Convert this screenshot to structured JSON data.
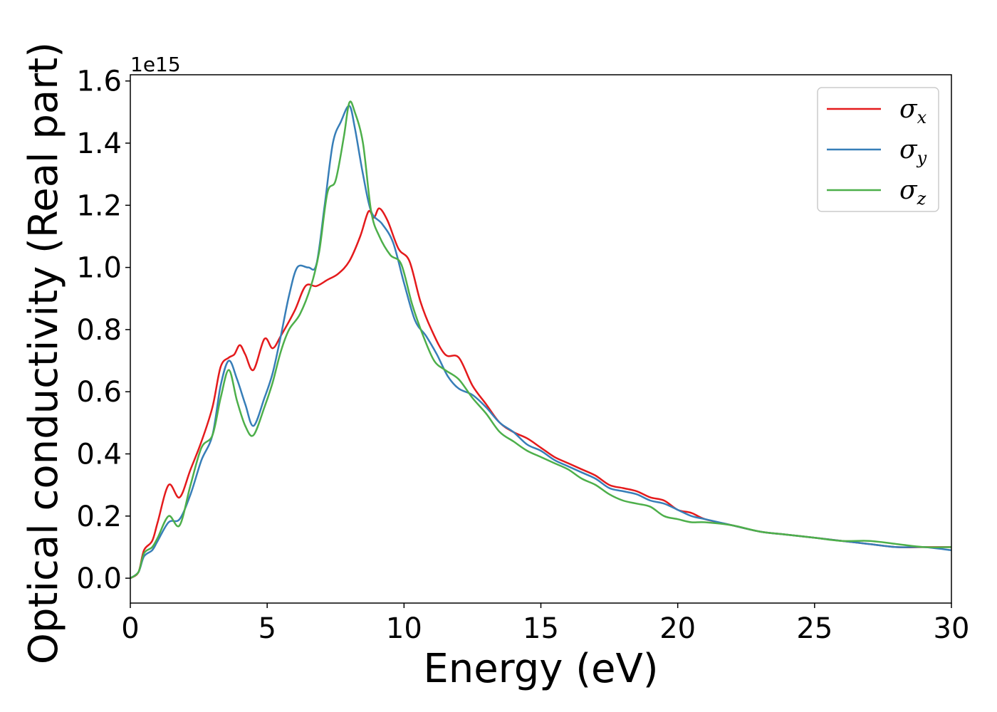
{
  "chart_data": {
    "type": "line",
    "xlabel": "Energy (eV)",
    "ylabel": "Optical conductivity (Real part)",
    "y_offset_label": "1e15",
    "xlim": [
      0,
      30
    ],
    "ylim": [
      -0.08,
      1.62
    ],
    "xticks": [
      0,
      5,
      10,
      15,
      20,
      25,
      30
    ],
    "xtick_labels": [
      "0",
      "5",
      "10",
      "15",
      "20",
      "25",
      "30"
    ],
    "yticks": [
      0.0,
      0.2,
      0.4,
      0.6,
      0.8,
      1.0,
      1.2,
      1.4,
      1.6
    ],
    "ytick_labels": [
      "0.0",
      "0.2",
      "0.4",
      "0.6",
      "0.8",
      "1.0",
      "1.2",
      "1.4",
      "1.6"
    ],
    "grid": false,
    "legend_position": "top-right",
    "series": [
      {
        "name": "σx",
        "symbol": "σ",
        "subscript": "x",
        "color": "#e41a1c",
        "x": [
          0,
          0.3,
          0.5,
          0.8,
          1.0,
          1.4,
          1.8,
          2.2,
          2.6,
          3.0,
          3.3,
          3.6,
          3.8,
          4.0,
          4.2,
          4.5,
          4.9,
          5.2,
          5.5,
          6.0,
          6.4,
          6.8,
          7.2,
          7.6,
          8.0,
          8.4,
          8.7,
          8.9,
          9.1,
          9.4,
          9.8,
          10.2,
          10.6,
          11.0,
          11.5,
          12.0,
          12.5,
          13.0,
          13.5,
          14.0,
          14.5,
          15.0,
          15.5,
          16.0,
          16.5,
          17.0,
          17.5,
          18.0,
          18.5,
          19.0,
          19.5,
          20.0,
          20.5,
          21.0,
          22.0,
          23.0,
          24.0,
          25.0,
          26.0,
          27.0,
          28.0,
          29.0,
          30.0
        ],
        "y": [
          0.0,
          0.02,
          0.09,
          0.12,
          0.18,
          0.3,
          0.26,
          0.35,
          0.44,
          0.55,
          0.68,
          0.71,
          0.72,
          0.75,
          0.72,
          0.67,
          0.77,
          0.74,
          0.78,
          0.86,
          0.94,
          0.94,
          0.96,
          0.98,
          1.02,
          1.1,
          1.18,
          1.16,
          1.19,
          1.15,
          1.06,
          1.02,
          0.89,
          0.8,
          0.72,
          0.71,
          0.62,
          0.56,
          0.5,
          0.47,
          0.45,
          0.42,
          0.39,
          0.37,
          0.35,
          0.33,
          0.3,
          0.29,
          0.28,
          0.26,
          0.25,
          0.22,
          0.21,
          0.19,
          0.17,
          0.15,
          0.14,
          0.13,
          0.12,
          0.11,
          0.1,
          0.1,
          0.1
        ]
      },
      {
        "name": "σy",
        "symbol": "σ",
        "subscript": "y",
        "color": "#377eb8",
        "x": [
          0,
          0.3,
          0.5,
          0.8,
          1.0,
          1.4,
          1.8,
          2.2,
          2.6,
          3.0,
          3.3,
          3.6,
          3.9,
          4.2,
          4.5,
          4.9,
          5.2,
          5.5,
          5.8,
          6.1,
          6.5,
          6.8,
          7.1,
          7.4,
          7.7,
          8.0,
          8.2,
          8.5,
          8.8,
          9.2,
          9.6,
          10.0,
          10.4,
          10.8,
          11.2,
          11.6,
          12.0,
          12.5,
          13.0,
          13.5,
          14.0,
          14.5,
          15.0,
          15.5,
          16.0,
          16.5,
          17.0,
          17.5,
          18.0,
          18.5,
          19.0,
          19.5,
          20.0,
          20.5,
          21.0,
          22.0,
          23.0,
          24.0,
          25.0,
          26.0,
          27.0,
          28.0,
          29.0,
          30.0
        ],
        "y": [
          0.0,
          0.02,
          0.07,
          0.09,
          0.12,
          0.18,
          0.19,
          0.27,
          0.38,
          0.46,
          0.62,
          0.7,
          0.64,
          0.56,
          0.49,
          0.58,
          0.66,
          0.78,
          0.91,
          1.0,
          1.0,
          1.01,
          1.2,
          1.4,
          1.47,
          1.52,
          1.45,
          1.3,
          1.18,
          1.14,
          1.08,
          0.95,
          0.83,
          0.78,
          0.72,
          0.65,
          0.61,
          0.59,
          0.55,
          0.5,
          0.47,
          0.43,
          0.41,
          0.38,
          0.36,
          0.34,
          0.32,
          0.29,
          0.28,
          0.27,
          0.25,
          0.24,
          0.22,
          0.2,
          0.19,
          0.17,
          0.15,
          0.14,
          0.13,
          0.12,
          0.11,
          0.1,
          0.1,
          0.09
        ]
      },
      {
        "name": "σz",
        "symbol": "σ",
        "subscript": "z",
        "color": "#4daf4a",
        "x": [
          0,
          0.3,
          0.5,
          0.8,
          1.0,
          1.4,
          1.8,
          2.2,
          2.6,
          3.0,
          3.3,
          3.6,
          3.9,
          4.2,
          4.5,
          4.9,
          5.2,
          5.5,
          5.8,
          6.2,
          6.6,
          6.9,
          7.2,
          7.5,
          7.8,
          8.0,
          8.2,
          8.5,
          8.8,
          9.1,
          9.5,
          9.9,
          10.3,
          10.7,
          11.1,
          11.5,
          12.0,
          12.5,
          13.0,
          13.5,
          14.0,
          14.5,
          15.0,
          15.5,
          16.0,
          16.5,
          17.0,
          17.5,
          18.0,
          18.5,
          19.0,
          19.5,
          20.0,
          20.5,
          21.0,
          22.0,
          23.0,
          24.0,
          25.0,
          26.0,
          27.0,
          28.0,
          29.0,
          30.0
        ],
        "y": [
          0.0,
          0.02,
          0.08,
          0.1,
          0.13,
          0.2,
          0.17,
          0.3,
          0.42,
          0.46,
          0.58,
          0.67,
          0.57,
          0.49,
          0.46,
          0.55,
          0.63,
          0.73,
          0.8,
          0.85,
          0.94,
          1.05,
          1.24,
          1.28,
          1.42,
          1.53,
          1.5,
          1.4,
          1.18,
          1.1,
          1.04,
          1.01,
          0.88,
          0.78,
          0.7,
          0.67,
          0.64,
          0.58,
          0.53,
          0.47,
          0.44,
          0.41,
          0.39,
          0.37,
          0.35,
          0.32,
          0.3,
          0.27,
          0.25,
          0.24,
          0.23,
          0.2,
          0.19,
          0.18,
          0.18,
          0.17,
          0.15,
          0.14,
          0.13,
          0.12,
          0.12,
          0.11,
          0.1,
          0.1
        ]
      }
    ]
  }
}
